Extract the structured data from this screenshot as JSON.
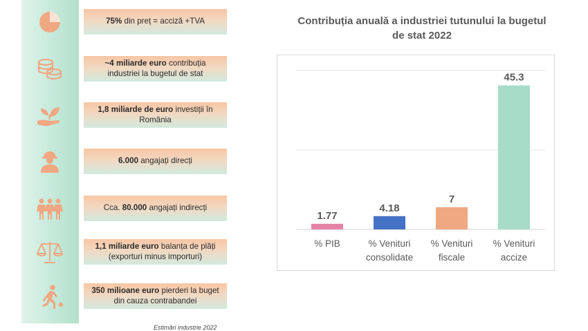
{
  "infographic": {
    "facts": [
      {
        "bold": "75%",
        "text": " din preț = acciză +TVA"
      },
      {
        "bold": "~4 miliarde euro",
        "text": " contribuția industriei la bugetul de stat"
      },
      {
        "bold": "1,8 miliarde de euro",
        "text": " investiții în România"
      },
      {
        "bold": "6.000",
        "text": " angajați direcți"
      },
      {
        "pre": "Cca. ",
        "bold": "80.000",
        "text": " angajați indirecți"
      },
      {
        "bold": "1,1 miliarde euro",
        "text": " balanța de plăți (exporturi minus importuri)"
      },
      {
        "bold": "350 milioane euro",
        "text": " pierderi la buget din cauza contrabandei"
      }
    ],
    "icons": [
      "pie-chart-icon",
      "coins-icon",
      "plant-in-hand-icon",
      "worker-icon",
      "people-group-icon",
      "balance-scale-icon",
      "runner-icon"
    ],
    "source": "Estimări industrie 2022",
    "accent_color": "#f0a882"
  },
  "chart_data": {
    "type": "bar",
    "title": "Contribuția anuală a industriei tutunului la bugetul de stat 2022",
    "categories": [
      [
        "% PIB"
      ],
      [
        "% Venituri",
        "consolidate"
      ],
      [
        "%  Venituri",
        "fiscale"
      ],
      [
        "% Venituri",
        "accize"
      ]
    ],
    "values": [
      1.77,
      4.18,
      7,
      45.3
    ],
    "value_labels": [
      "1.77",
      "4.18",
      "7",
      "45.3"
    ],
    "colors": [
      "#e583a6",
      "#4472c4",
      "#f0a882",
      "#a6dcc8"
    ],
    "ylim": [
      0,
      50
    ],
    "grid": true,
    "xlabel": "",
    "ylabel": ""
  }
}
